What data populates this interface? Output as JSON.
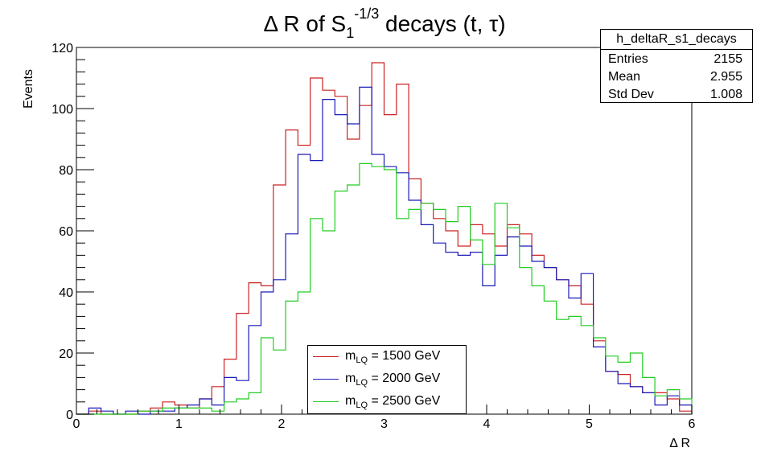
{
  "chart_data": {
    "type": "histogram",
    "title": "Δ R of S₁^(-1/3) decays (t, τ)",
    "title_parts": {
      "pre": "Δ R of S",
      "sub": "1",
      "sup": "-1/3",
      "post": " decays (t, τ)"
    },
    "xlabel": "Δ R",
    "ylabel": "Events",
    "xlim": [
      0,
      6
    ],
    "ylim": [
      0,
      120
    ],
    "x_ticks": [
      0,
      1,
      2,
      3,
      4,
      5,
      6
    ],
    "y_ticks": [
      0,
      20,
      40,
      60,
      80,
      100,
      120
    ],
    "bin_width": 0.12,
    "n_bins": 50,
    "grid": false,
    "legend_position": "bottom-center",
    "series": [
      {
        "name": "m_LQ = 1500 GeV",
        "label_main": "m",
        "label_sub": "LQ",
        "label_rest": " = 1500 GeV",
        "color": "#cc2222",
        "values": [
          0,
          1,
          0,
          0,
          0,
          1,
          2,
          4,
          3,
          2,
          5,
          9,
          18,
          33,
          43,
          42,
          75,
          93,
          88,
          110,
          106,
          104,
          90,
          101,
          115,
          98,
          108,
          77,
          69,
          64,
          60,
          55,
          62,
          59,
          55,
          62,
          59,
          52,
          48,
          44,
          42,
          36,
          24,
          14,
          13,
          9,
          7,
          7,
          5,
          1
        ]
      },
      {
        "name": "m_LQ = 2000 GeV",
        "label_main": "m",
        "label_sub": "LQ",
        "label_rest": " = 2000 GeV",
        "color": "#1a1ab8",
        "values": [
          0,
          2,
          1,
          0,
          1,
          0,
          1,
          1,
          2,
          3,
          5,
          3,
          12,
          11,
          29,
          40,
          44,
          59,
          85,
          83,
          103,
          98,
          95,
          107,
          85,
          81,
          79,
          70,
          62,
          56,
          53,
          52,
          53,
          42,
          52,
          58,
          55,
          50,
          48,
          44,
          38,
          46,
          22,
          14,
          10,
          9,
          7,
          3,
          6,
          3
        ]
      },
      {
        "name": "m_LQ = 2500 GeV",
        "label_main": "m",
        "label_sub": "LQ",
        "label_rest": " = 2500 GeV",
        "color": "#22cc22",
        "values": [
          0,
          0,
          0,
          0,
          0,
          1,
          1,
          2,
          2,
          2,
          2,
          1,
          4,
          5,
          7,
          25,
          21,
          37,
          40,
          64,
          60,
          73,
          75,
          82,
          81,
          80,
          64,
          67,
          69,
          67,
          63,
          68,
          57,
          49,
          69,
          61,
          48,
          42,
          37,
          31,
          32,
          29,
          25,
          19,
          17,
          20,
          12,
          6,
          8,
          5
        ]
      }
    ]
  },
  "stats": {
    "title": "h_deltaR_s1_decays",
    "rows": [
      {
        "label": "Entries",
        "value": "2155"
      },
      {
        "label": "Mean",
        "value": "2.955"
      },
      {
        "label": "Std Dev",
        "value": "1.008"
      }
    ]
  }
}
